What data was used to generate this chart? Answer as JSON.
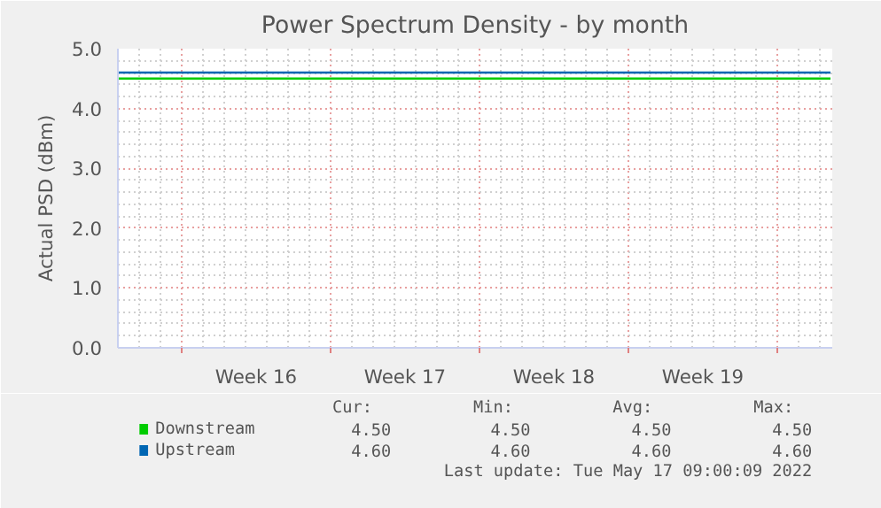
{
  "chart_data": {
    "type": "line",
    "title": "Power Spectrum Density - by month",
    "ylabel": "Actual PSD (dBm)",
    "x": [
      "2022-04-15",
      "2022-05-18T12:00"
    ],
    "series": [
      {
        "name": "Downstream",
        "color": "#00cc00",
        "values": [
          4.5,
          4.5
        ]
      },
      {
        "name": "Upstream",
        "color": "#0066b3",
        "values": [
          4.6,
          4.6
        ]
      }
    ],
    "xlim": [
      "2022-04-15",
      "2022-05-18T14:00"
    ],
    "xticks": [
      {
        "value": "2022-04-18",
        "label": null
      },
      {
        "value": "2022-04-21T12:00",
        "label": "Week 16"
      },
      {
        "value": "2022-04-25",
        "label": null
      },
      {
        "value": "2022-04-28T12:00",
        "label": "Week 17"
      },
      {
        "value": "2022-05-02",
        "label": null
      },
      {
        "value": "2022-05-05T12:00",
        "label": "Week 18"
      },
      {
        "value": "2022-05-09",
        "label": null
      },
      {
        "value": "2022-05-12T12:00",
        "label": "Week 19"
      },
      {
        "value": "2022-05-16",
        "label": null
      }
    ],
    "ylim": [
      0,
      5
    ],
    "yticks": [
      {
        "value": 0,
        "label": "0.0"
      },
      {
        "value": 1,
        "label": "1.0"
      },
      {
        "value": 2,
        "label": "2.0"
      },
      {
        "value": 3,
        "label": "3.0"
      },
      {
        "value": 4,
        "label": "4.0"
      },
      {
        "value": 5,
        "label": "5.0"
      }
    ],
    "grid": true,
    "legend": "bottom",
    "marker": "none",
    "line_style": "solid",
    "annotations": [
      "Cur:",
      "Min:",
      "Avg:",
      "Max:",
      "4.50",
      "4.50",
      "4.50",
      "4.50",
      "4.60",
      "4.60",
      "4.60",
      "4.60",
      "Last update: Tue May 17 09:00:09 2022"
    ]
  }
}
